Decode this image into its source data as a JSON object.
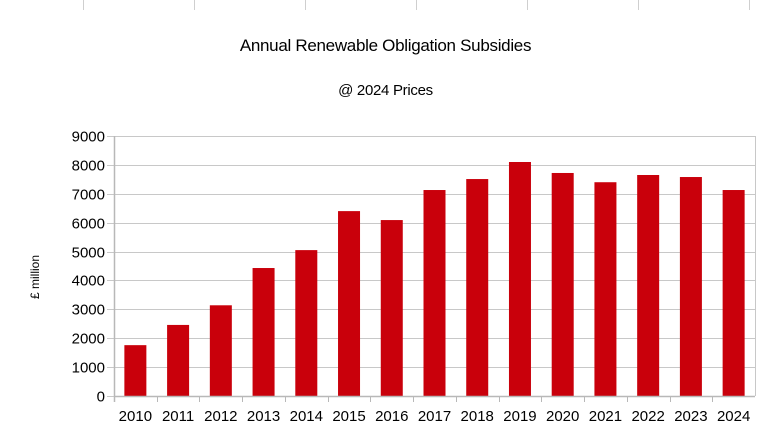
{
  "chart_data": {
    "type": "bar",
    "title": "Annual Renewable Obligation Subsidies",
    "subtitle": "@ 2024 Prices",
    "xlabel": "",
    "ylabel": "£ million",
    "ylim": [
      0,
      9000
    ],
    "yticks": [
      0,
      1000,
      2000,
      3000,
      4000,
      5000,
      6000,
      7000,
      8000,
      9000
    ],
    "grid": true,
    "legend": "none",
    "bar_color": "#c9000b",
    "categories": [
      "2010",
      "2011",
      "2012",
      "2013",
      "2014",
      "2015",
      "2016",
      "2017",
      "2018",
      "2019",
      "2020",
      "2021",
      "2022",
      "2023",
      "2024"
    ],
    "values": [
      1760,
      2460,
      3140,
      4430,
      5050,
      6400,
      6090,
      7130,
      7510,
      8100,
      7720,
      7400,
      7650,
      7580,
      7130
    ]
  }
}
